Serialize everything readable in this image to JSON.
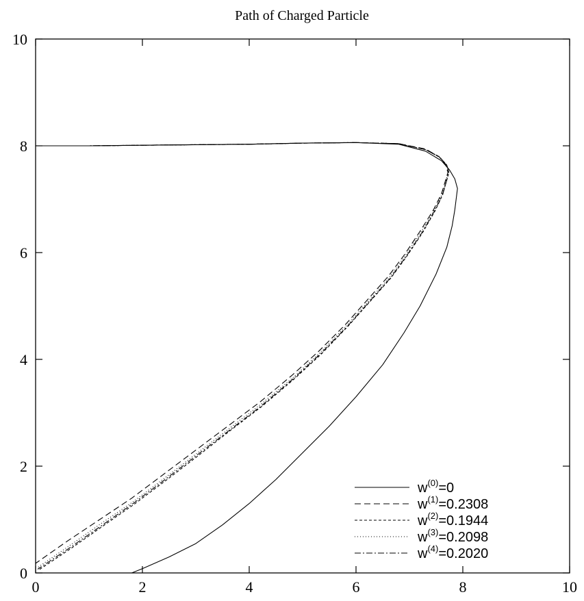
{
  "chart_data": {
    "type": "line",
    "title": "Path of Charged Particle",
    "xlabel": "",
    "ylabel": "",
    "xlim": [
      0,
      10
    ],
    "ylim": [
      0,
      10
    ],
    "xticks": [
      0,
      2,
      4,
      6,
      8,
      10
    ],
    "yticks": [
      0,
      2,
      4,
      6,
      8,
      10
    ],
    "grid": false,
    "legend_position": "bottom-right",
    "series": [
      {
        "name": "w(0)=0",
        "legend": {
          "base": "w",
          "sup": "(0)",
          "rest": "=0"
        },
        "dash": "",
        "x": [
          0,
          1,
          2,
          3,
          4,
          5,
          6,
          6.8,
          7.3,
          7.6,
          7.75,
          7.85,
          7.9,
          7.85,
          7.8,
          7.7,
          7.5,
          7.2,
          6.9,
          6.5,
          6,
          5.5,
          5,
          4.5,
          4,
          3.5,
          3,
          2.5,
          2,
          1.8
        ],
        "y": [
          8.0,
          8.0,
          8.01,
          8.02,
          8.03,
          8.05,
          8.06,
          8.03,
          7.9,
          7.72,
          7.55,
          7.38,
          7.2,
          6.8,
          6.5,
          6.1,
          5.6,
          5.0,
          4.5,
          3.9,
          3.3,
          2.75,
          2.25,
          1.75,
          1.3,
          0.9,
          0.55,
          0.3,
          0.08,
          0.0
        ]
      },
      {
        "name": "w(1)=0.2308",
        "legend": {
          "base": "w",
          "sup": "(1)",
          "rest": "=0.2308"
        },
        "dash": "9,5",
        "x": [
          0,
          1,
          2,
          3,
          4,
          5,
          6,
          6.8,
          7.3,
          7.55,
          7.68,
          7.72,
          7.6,
          7.45,
          7.2,
          6.9,
          6.6,
          6.2,
          5.8,
          5.3,
          4.8,
          4.2,
          3.6,
          3.0,
          2.4,
          1.8,
          1.2,
          0.6,
          0.0
        ],
        "y": [
          8.0,
          8.0,
          8.01,
          8.02,
          8.03,
          8.05,
          8.06,
          8.04,
          7.94,
          7.8,
          7.65,
          7.5,
          7.1,
          6.8,
          6.4,
          5.95,
          5.55,
          5.1,
          4.65,
          4.15,
          3.7,
          3.2,
          2.75,
          2.3,
          1.85,
          1.4,
          1.0,
          0.6,
          0.18
        ]
      },
      {
        "name": "w(2)=0.1944",
        "legend": {
          "base": "w",
          "sup": "(2)",
          "rest": "=0.1944"
        },
        "dash": "4,3",
        "x": [
          0,
          1,
          2,
          3,
          4,
          5,
          6,
          6.8,
          7.3,
          7.56,
          7.7,
          7.74,
          7.62,
          7.48,
          7.25,
          6.95,
          6.65,
          6.25,
          5.85,
          5.35,
          4.85,
          4.25,
          3.65,
          3.05,
          2.45,
          1.85,
          1.25,
          0.65,
          0.05
        ],
        "y": [
          8.0,
          8.0,
          8.01,
          8.02,
          8.03,
          8.05,
          8.06,
          8.04,
          7.93,
          7.79,
          7.64,
          7.5,
          7.08,
          6.78,
          6.38,
          5.93,
          5.52,
          5.07,
          4.62,
          4.1,
          3.64,
          3.13,
          2.67,
          2.2,
          1.74,
          1.29,
          0.87,
          0.45,
          0.05
        ]
      },
      {
        "name": "w(3)=0.2098",
        "legend": {
          "base": "w",
          "sup": "(3)",
          "rest": "=0.2098"
        },
        "dash": "1,3",
        "x": [
          0,
          1,
          2,
          3,
          4,
          5,
          6,
          6.8,
          7.3,
          7.56,
          7.69,
          7.73,
          7.61,
          7.46,
          7.22,
          6.92,
          6.62,
          6.22,
          5.82,
          5.32,
          4.82,
          4.22,
          3.62,
          3.02,
          2.42,
          1.82,
          1.22,
          0.62,
          0.02
        ],
        "y": [
          8.0,
          8.0,
          8.01,
          8.02,
          8.03,
          8.05,
          8.06,
          8.04,
          7.93,
          7.8,
          7.65,
          7.5,
          7.09,
          6.79,
          6.39,
          5.94,
          5.53,
          5.08,
          4.63,
          4.12,
          3.66,
          3.16,
          2.7,
          2.24,
          1.78,
          1.33,
          0.92,
          0.5,
          0.09
        ]
      },
      {
        "name": "w(4)=0.2020",
        "legend": {
          "base": "w",
          "sup": "(4)",
          "rest": "=0.2020"
        },
        "dash": "9,3,2,3",
        "x": [
          0,
          1,
          2,
          3,
          4,
          5,
          6,
          6.8,
          7.3,
          7.56,
          7.7,
          7.74,
          7.62,
          7.47,
          7.24,
          6.94,
          6.64,
          6.24,
          5.84,
          5.34,
          4.84,
          4.24,
          3.64,
          3.04,
          2.44,
          1.84,
          1.24,
          0.64,
          0.04
        ],
        "y": [
          8.0,
          8.0,
          8.01,
          8.02,
          8.03,
          8.05,
          8.06,
          8.04,
          7.93,
          7.79,
          7.64,
          7.5,
          7.08,
          6.78,
          6.38,
          5.93,
          5.52,
          5.07,
          4.62,
          4.11,
          3.65,
          3.14,
          2.68,
          2.22,
          1.76,
          1.31,
          0.89,
          0.47,
          0.07
        ]
      }
    ]
  }
}
